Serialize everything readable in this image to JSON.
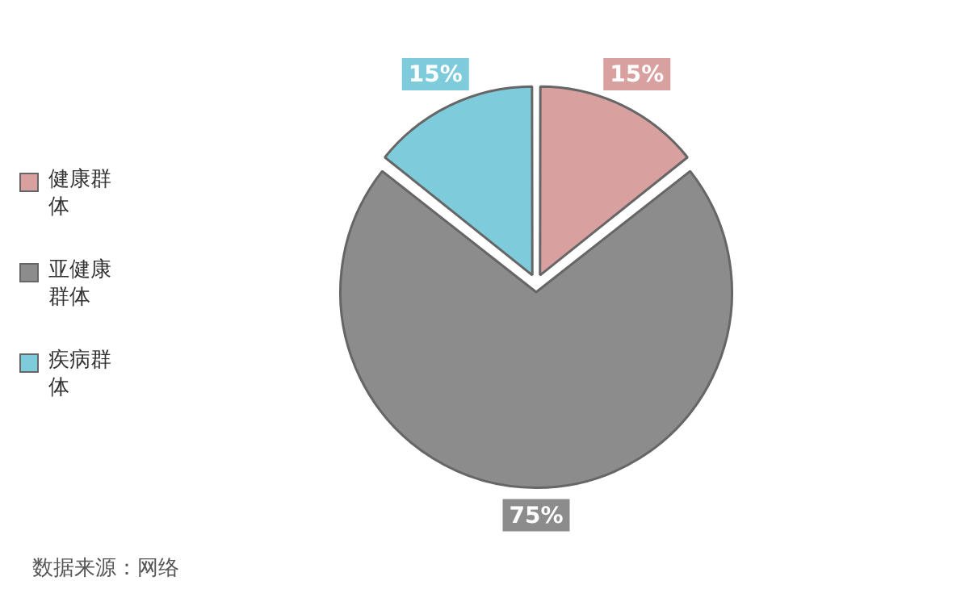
{
  "chart_data": {
    "type": "pie",
    "categories": [
      "健康群体",
      "亚健康群体",
      "疾病群体"
    ],
    "values": [
      15,
      75,
      15
    ],
    "colors": [
      "#d9a0a0",
      "#8c8c8c",
      "#7ecbdb"
    ],
    "value_labels": [
      "15%",
      "75%",
      "15%"
    ],
    "legend": "left",
    "annotations": [
      "数据来源：网络"
    ]
  }
}
